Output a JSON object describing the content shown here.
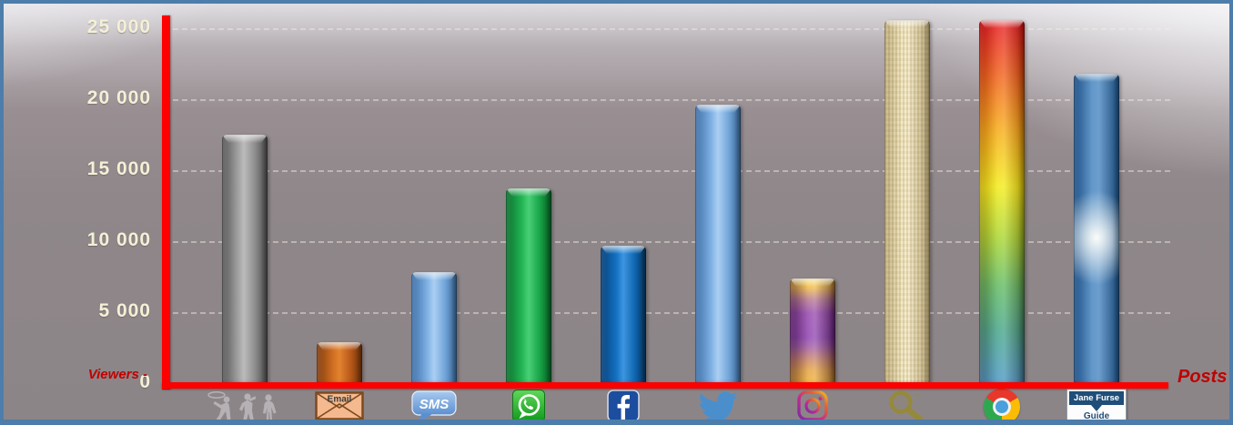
{
  "axes": {
    "y_axis_label": "Viewers -",
    "x_axis_label": "Posts",
    "axis_color": "#fe0000",
    "axis_label_color": "#c00000",
    "tick_label_color": "#f4f0d6"
  },
  "frame": {
    "border_color": "#4d7dab"
  },
  "icon_labels": {
    "email": "Email",
    "sms": "SMS",
    "jane_furse_line1": "Jane Furse",
    "jane_furse_line2": "Guide"
  },
  "chart_data": {
    "type": "bar",
    "title": "",
    "xlabel": "Posts",
    "ylabel": "Viewers",
    "ylim": [
      0,
      26000
    ],
    "yticks": [
      0,
      5000,
      10000,
      15000,
      20000,
      25000
    ],
    "ytick_labels": [
      "0",
      "5 000",
      "10 000",
      "15 000",
      "20 000",
      "25 000"
    ],
    "grid": "horizontal-dashed",
    "legend": "none",
    "categories": [
      "People (word of mouth)",
      "Email",
      "SMS",
      "WhatsApp",
      "Facebook",
      "Twitter",
      "Instagram",
      "Search (magnifying glass)",
      "Google Chrome",
      "Jane Furse Guide"
    ],
    "icons": [
      "people-icon",
      "email-icon",
      "sms-icon",
      "whatsapp-icon",
      "facebook-icon",
      "twitter-icon",
      "instagram-icon",
      "search-icon",
      "chrome-icon",
      "janefurse-guide-icon"
    ],
    "values": [
      17500,
      2900,
      7800,
      13700,
      9700,
      19600,
      7400,
      25600,
      25600,
      21800
    ],
    "bar_styles": [
      "gray",
      "orange",
      "lightblue",
      "green",
      "blue",
      "lightblue",
      "instagram",
      "tan",
      "chrome",
      "bluewhite"
    ]
  }
}
